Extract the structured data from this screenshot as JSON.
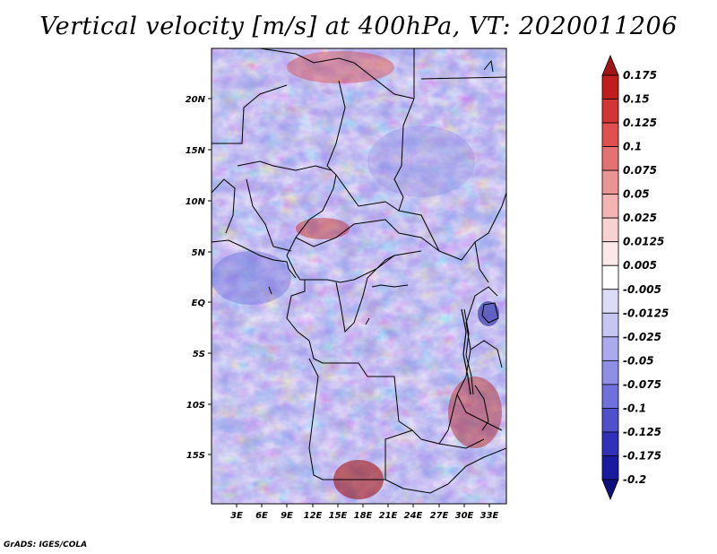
{
  "title": "Vertical velocity [m/s] at 400hPa, VT: 2020011206",
  "credit": "GrADS: IGES/COLA",
  "map": {
    "lon_labels": [
      "3E",
      "6E",
      "9E",
      "12E",
      "15E",
      "18E",
      "21E",
      "24E",
      "27E",
      "30E",
      "33E"
    ],
    "lat_labels": [
      "20N",
      "15N",
      "10N",
      "5N",
      "EQ",
      "5S",
      "10S",
      "15S"
    ],
    "lon_range": [
      0,
      35
    ],
    "lat_range": [
      -20,
      25
    ]
  },
  "colorbar": {
    "labels": [
      "0.175",
      "0.15",
      "0.125",
      "0.1",
      "0.075",
      "0.05",
      "0.025",
      "0.0125",
      "0.005",
      "-0.005",
      "-0.0125",
      "-0.025",
      "-0.05",
      "-0.075",
      "-0.1",
      "-0.125",
      "-0.175",
      "-0.2"
    ],
    "colors": [
      "#a01515",
      "#c01d1d",
      "#d33434",
      "#e05050",
      "#e57272",
      "#ec9494",
      "#f3b4b4",
      "#f8d2d2",
      "#fbe8e8",
      "#ffffff",
      "#dcdcf8",
      "#c6c6f3",
      "#aaaaee",
      "#8f8fe6",
      "#7070dd",
      "#5050cc",
      "#3030b8",
      "#1a1aa0",
      "#10107a"
    ]
  }
}
